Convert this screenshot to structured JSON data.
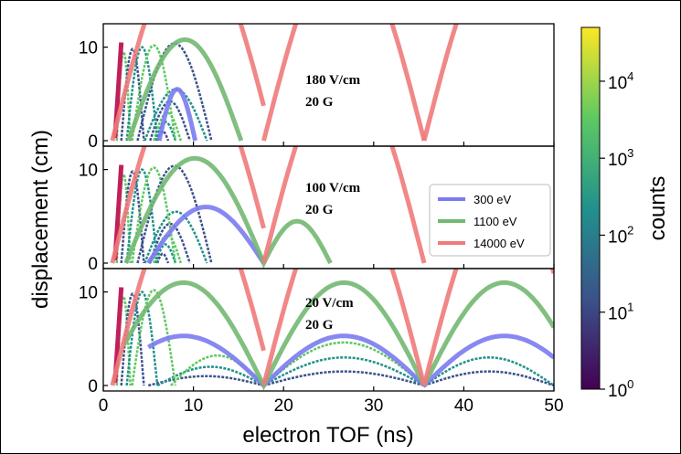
{
  "chart_data": {
    "type": "line",
    "xlabel": "electron TOF (ns)",
    "ylabel": "displacement (cm)",
    "xlim": [
      0,
      50
    ],
    "ylim": [
      0,
      12.5
    ],
    "x_ticks": [
      "0",
      "10",
      "20",
      "30",
      "40",
      "50"
    ],
    "y_ticks": [
      "0",
      "10"
    ],
    "colorbar": {
      "label": "counts",
      "scale": "log",
      "range": [
        1,
        50000
      ],
      "tick_bases": [
        "10",
        "10",
        "10",
        "10",
        "10"
      ],
      "tick_exponents": [
        "0",
        "1",
        "2",
        "3",
        "4"
      ]
    },
    "legend": {
      "placement": "middle panel, right",
      "entries": [
        {
          "label": "300 eV",
          "color": "#7b7bf0"
        },
        {
          "label": "1100 eV",
          "color": "#72b872"
        },
        {
          "label": "14000 eV",
          "color": "#f07a7a"
        }
      ]
    },
    "panels": [
      {
        "annotation": [
          "180 V/cm",
          "20 G"
        ],
        "series": [
          {
            "name": "300 eV",
            "x_range": [
              6.2,
              10.2
            ],
            "peak": 5.5
          },
          {
            "name": "1100 eV",
            "x_range": [
              2.8,
              15.3
            ],
            "peak": 10.8
          },
          {
            "name": "14000 eV",
            "arcs": [
              [
                1.0,
                17.8
              ],
              [
                17.8,
                35.6
              ],
              [
                35.6,
                45.5
              ]
            ],
            "peak": 12.5
          }
        ]
      },
      {
        "annotation": [
          "100 V/cm",
          "20 G"
        ],
        "series": [
          {
            "name": "300 eV",
            "x_range": [
              5.0,
              17.8
            ],
            "peak": 6.0
          },
          {
            "name": "1100 eV",
            "x_range": [
              2.5,
              25.2
            ],
            "peak": 11.2
          },
          {
            "name": "14000 eV",
            "arcs": [
              [
                1.0,
                17.8
              ],
              [
                17.8,
                35.6
              ]
            ],
            "peak": 12.5
          }
        ]
      },
      {
        "annotation": [
          "20 V/cm",
          "20 G"
        ],
        "series": [
          {
            "name": "300 eV",
            "x_range": [
              5.0,
              50.0
            ],
            "peak": 5.3
          },
          {
            "name": "1100 eV",
            "x_range": [
              2.3,
              50.0
            ],
            "peak": 11.0
          },
          {
            "name": "14000 eV",
            "arcs": [
              [
                1.0,
                17.8
              ],
              [
                17.8,
                35.6
              ],
              [
                35.6,
                50.0
              ]
            ],
            "peak": 12.5
          }
        ]
      }
    ]
  }
}
